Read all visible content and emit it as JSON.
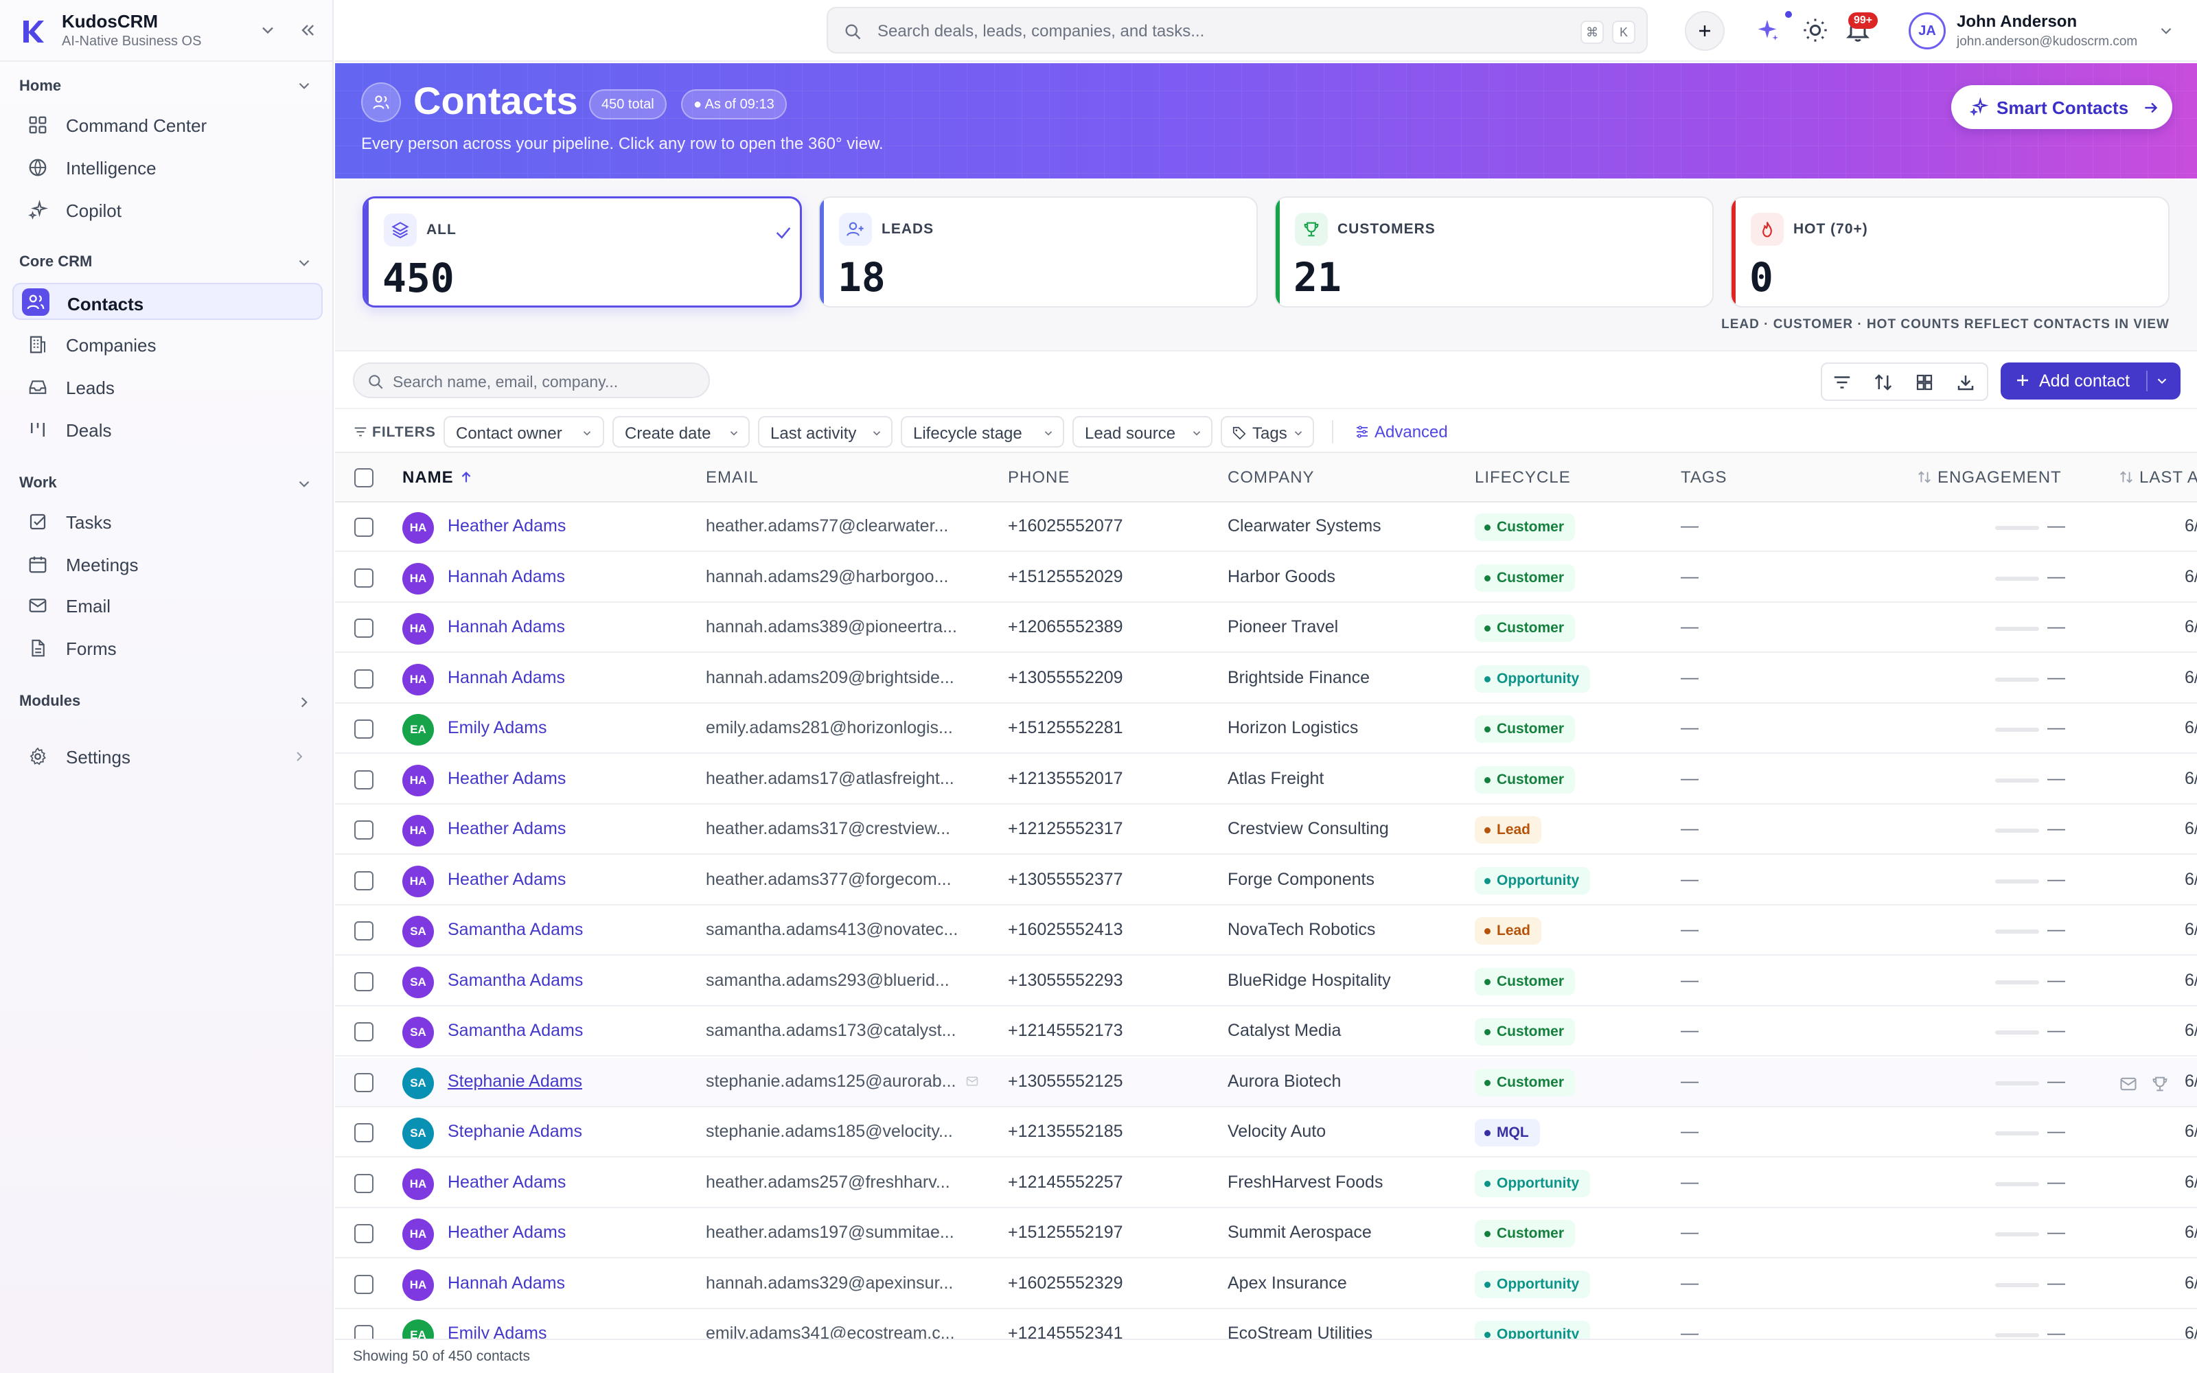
{
  "brand": {
    "name": "KudosCRM",
    "subtitle": "AI-Native Business OS"
  },
  "sidebar": {
    "sections": [
      {
        "label": "Home",
        "items": [
          {
            "label": "Command Center",
            "icon": "grid-icon"
          },
          {
            "label": "Intelligence",
            "icon": "brain-icon"
          },
          {
            "label": "Copilot",
            "icon": "sparkles-icon"
          }
        ]
      },
      {
        "label": "Core CRM",
        "items": [
          {
            "label": "Contacts",
            "icon": "users-icon",
            "active": true
          },
          {
            "label": "Companies",
            "icon": "building-icon"
          },
          {
            "label": "Leads",
            "icon": "inbox-icon"
          },
          {
            "label": "Deals",
            "icon": "kanban-icon"
          }
        ]
      },
      {
        "label": "Work",
        "items": [
          {
            "label": "Tasks",
            "icon": "checkbox-icon"
          },
          {
            "label": "Meetings",
            "icon": "calendar-icon"
          },
          {
            "label": "Email",
            "icon": "mail-icon"
          },
          {
            "label": "Forms",
            "icon": "document-icon"
          }
        ]
      },
      {
        "label": "Modules",
        "items": []
      }
    ],
    "settings_label": "Settings"
  },
  "topbar": {
    "search_placeholder": "Search deals, leads, companies, and tasks...",
    "kbd_cmd": "⌘",
    "kbd_k": "K",
    "notification_badge": "99+",
    "user": {
      "initials": "JA",
      "name": "John Anderson",
      "email": "john.anderson@kudoscrm.com"
    }
  },
  "hero": {
    "title": "Contacts",
    "total_pill": "450 total",
    "asof_pill": "● As of 09:13",
    "description": "Every person across your pipeline. Click any row to open the 360° view.",
    "smart_button": "Smart Contacts"
  },
  "stats": {
    "cards": [
      {
        "label": "ALL",
        "value": "450",
        "color": "#5b4ee8",
        "bg": "#eef0ff",
        "icon": "layers-icon",
        "selected": true
      },
      {
        "label": "LEADS",
        "value": "18",
        "color": "#5b6ee8",
        "bg": "#eef1ff",
        "icon": "user-plus-icon",
        "selected": false
      },
      {
        "label": "CUSTOMERS",
        "value": "21",
        "color": "#16a34a",
        "bg": "#e9f8ee",
        "icon": "trophy-icon",
        "selected": false
      },
      {
        "label": "HOT (70+)",
        "value": "0",
        "color": "#dc2626",
        "bg": "#fdecec",
        "icon": "flame-icon",
        "selected": false
      }
    ],
    "note": "LEAD · CUSTOMER · HOT COUNTS REFLECT CONTACTS IN VIEW"
  },
  "toolbar": {
    "search_placeholder": "Search name, email, company...",
    "add_contact": "Add contact"
  },
  "filters": {
    "label": "FILTERS",
    "chips": [
      "Contact owner",
      "Create date",
      "Last activity",
      "Lifecycle stage",
      "Lead source",
      "Tags"
    ],
    "advanced": "Advanced"
  },
  "table": {
    "columns": {
      "name": "NAME",
      "email": "EMAIL",
      "phone": "PHONE",
      "company": "COMPANY",
      "lifecycle": "LIFECYCLE",
      "tags": "TAGS",
      "engagement": "ENGAGEMENT",
      "last": "LAST A"
    },
    "rows": [
      {
        "initials": "HA",
        "avatar": "#7e3ae0",
        "name": "Heather Adams",
        "email": "heather.adams77@clearwater...",
        "phone": "+16025552077",
        "company": "Clearwater Systems",
        "stage": "Customer",
        "stage_class": "customer",
        "tags": "—",
        "engagement": "—",
        "last": "6/"
      },
      {
        "initials": "HA",
        "avatar": "#7e3ae0",
        "name": "Hannah Adams",
        "email": "hannah.adams29@harborgoo...",
        "phone": "+15125552029",
        "company": "Harbor Goods",
        "stage": "Customer",
        "stage_class": "customer",
        "tags": "—",
        "engagement": "—",
        "last": "6/"
      },
      {
        "initials": "HA",
        "avatar": "#7e3ae0",
        "name": "Hannah Adams",
        "email": "hannah.adams389@pioneertra...",
        "phone": "+12065552389",
        "company": "Pioneer Travel",
        "stage": "Customer",
        "stage_class": "customer",
        "tags": "—",
        "engagement": "—",
        "last": "6/"
      },
      {
        "initials": "HA",
        "avatar": "#7e3ae0",
        "name": "Hannah Adams",
        "email": "hannah.adams209@brightside...",
        "phone": "+13055552209",
        "company": "Brightside Finance",
        "stage": "Opportunity",
        "stage_class": "opportunity",
        "tags": "—",
        "engagement": "—",
        "last": "6/"
      },
      {
        "initials": "EA",
        "avatar": "#16a34a",
        "name": "Emily Adams",
        "email": "emily.adams281@horizonlogis...",
        "phone": "+15125552281",
        "company": "Horizon Logistics",
        "stage": "Customer",
        "stage_class": "customer",
        "tags": "—",
        "engagement": "—",
        "last": "6/"
      },
      {
        "initials": "HA",
        "avatar": "#7e3ae0",
        "name": "Heather Adams",
        "email": "heather.adams17@atlasfreight...",
        "phone": "+12135552017",
        "company": "Atlas Freight",
        "stage": "Customer",
        "stage_class": "customer",
        "tags": "—",
        "engagement": "—",
        "last": "6/"
      },
      {
        "initials": "HA",
        "avatar": "#7e3ae0",
        "name": "Heather Adams",
        "email": "heather.adams317@crestview...",
        "phone": "+12125552317",
        "company": "Crestview Consulting",
        "stage": "Lead",
        "stage_class": "lead",
        "tags": "—",
        "engagement": "—",
        "last": "6/"
      },
      {
        "initials": "HA",
        "avatar": "#7e3ae0",
        "name": "Heather Adams",
        "email": "heather.adams377@forgecom...",
        "phone": "+13055552377",
        "company": "Forge Components",
        "stage": "Opportunity",
        "stage_class": "opportunity",
        "tags": "—",
        "engagement": "—",
        "last": "6/"
      },
      {
        "initials": "SA",
        "avatar": "#7e3ae0",
        "name": "Samantha Adams",
        "email": "samantha.adams413@novatec...",
        "phone": "+16025552413",
        "company": "NovaTech Robotics",
        "stage": "Lead",
        "stage_class": "lead",
        "tags": "—",
        "engagement": "—",
        "last": "6/"
      },
      {
        "initials": "SA",
        "avatar": "#7e3ae0",
        "name": "Samantha Adams",
        "email": "samantha.adams293@bluerid...",
        "phone": "+13055552293",
        "company": "BlueRidge Hospitality",
        "stage": "Customer",
        "stage_class": "customer",
        "tags": "—",
        "engagement": "—",
        "last": "6/"
      },
      {
        "initials": "SA",
        "avatar": "#7e3ae0",
        "name": "Samantha Adams",
        "email": "samantha.adams173@catalyst...",
        "phone": "+12145552173",
        "company": "Catalyst Media",
        "stage": "Customer",
        "stage_class": "customer",
        "tags": "—",
        "engagement": "—",
        "last": "6/"
      },
      {
        "initials": "SA",
        "avatar": "#0891b2",
        "name": "Stephanie Adams",
        "email": "stephanie.adams125@aurorab...",
        "phone": "+13055552125",
        "company": "Aurora Biotech",
        "stage": "Customer",
        "stage_class": "customer",
        "tags": "—",
        "engagement": "—",
        "last": "6/",
        "hover": true
      },
      {
        "initials": "SA",
        "avatar": "#0891b2",
        "name": "Stephanie Adams",
        "email": "stephanie.adams185@velocity...",
        "phone": "+12135552185",
        "company": "Velocity Auto",
        "stage": "MQL",
        "stage_class": "mql",
        "tags": "—",
        "engagement": "—",
        "last": "6/"
      },
      {
        "initials": "HA",
        "avatar": "#7e3ae0",
        "name": "Heather Adams",
        "email": "heather.adams257@freshharv...",
        "phone": "+12145552257",
        "company": "FreshHarvest Foods",
        "stage": "Opportunity",
        "stage_class": "opportunity",
        "tags": "—",
        "engagement": "—",
        "last": "6/"
      },
      {
        "initials": "HA",
        "avatar": "#7e3ae0",
        "name": "Heather Adams",
        "email": "heather.adams197@summitae...",
        "phone": "+15125552197",
        "company": "Summit Aerospace",
        "stage": "Customer",
        "stage_class": "customer",
        "tags": "—",
        "engagement": "—",
        "last": "6/"
      },
      {
        "initials": "HA",
        "avatar": "#7e3ae0",
        "name": "Hannah Adams",
        "email": "hannah.adams329@apexinsur...",
        "phone": "+16025552329",
        "company": "Apex Insurance",
        "stage": "Opportunity",
        "stage_class": "opportunity",
        "tags": "—",
        "engagement": "—",
        "last": "6/"
      },
      {
        "initials": "EA",
        "avatar": "#16a34a",
        "name": "Emily Adams",
        "email": "emily.adams341@ecostream.c...",
        "phone": "+12145552341",
        "company": "EcoStream Utilities",
        "stage": "Opportunity",
        "stage_class": "opportunity",
        "tags": "—",
        "engagement": "—",
        "last": "6/"
      }
    ]
  },
  "footer": {
    "showing": "Showing 50 of 450 contacts"
  }
}
